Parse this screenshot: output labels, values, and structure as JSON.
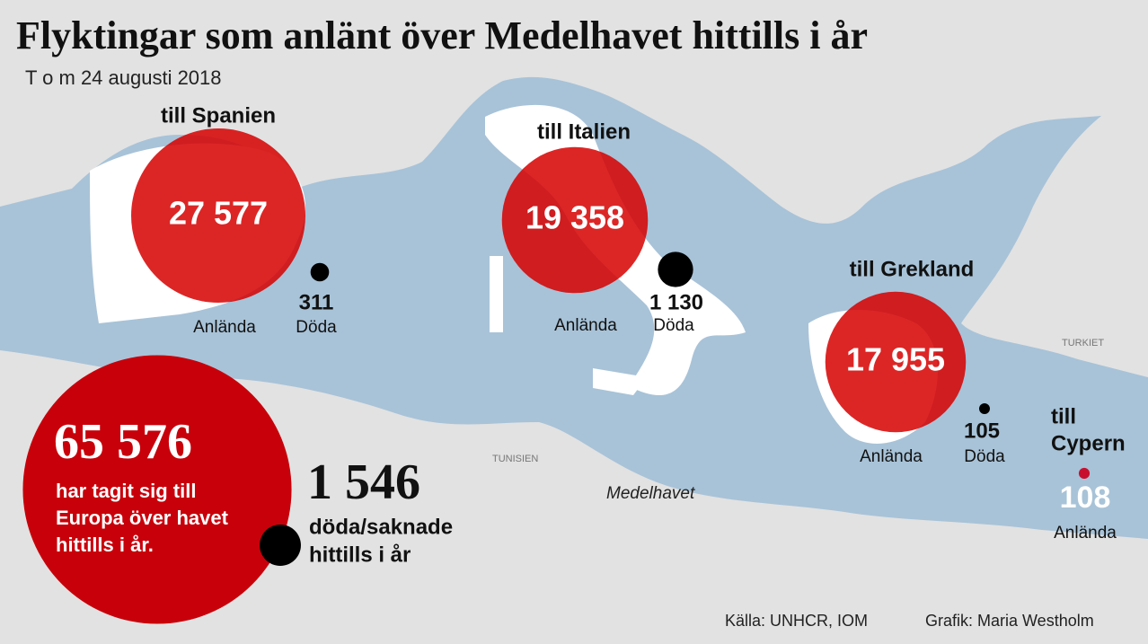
{
  "title": "Flyktingar som anlänt över Medelhavet hittills i år",
  "subtitle": "T o m 24 augusti 2018",
  "destinations": [
    {
      "label": "till Spanien",
      "arrived": 27577,
      "arrived_label": "27 577",
      "arrived_caption": "Anlända",
      "dead": 311,
      "dead_label": "311",
      "dead_caption": "Döda"
    },
    {
      "label": "till Italien",
      "arrived": 19358,
      "arrived_label": "19 358",
      "arrived_caption": "Anlända",
      "dead": 1130,
      "dead_label": "1 130",
      "dead_caption": "Döda"
    },
    {
      "label": "till Grekland",
      "arrived": 17955,
      "arrived_label": "17 955",
      "arrived_caption": "Anlända",
      "dead": 105,
      "dead_label": "105",
      "dead_caption": "Döda"
    },
    {
      "label": [
        "till",
        "Cypern"
      ],
      "arrived": 108,
      "arrived_label": "108",
      "arrived_caption": "Anlända"
    }
  ],
  "total": {
    "arrived": 65576,
    "arrived_label": "65 576",
    "arrived_text": [
      "har tagit sig till",
      "Europa över havet",
      "hittills i år."
    ],
    "dead": 1546,
    "dead_label": "1 546",
    "dead_text": [
      "döda/saknade",
      "hittills i år"
    ]
  },
  "map_labels": {
    "country_1": "TURKIET",
    "country_2": "TUNISIEN",
    "sea": "Medelhavet"
  },
  "footer": {
    "source": "Källa: UNHCR, IOM",
    "credit": "Grafik: Maria Westholm"
  }
}
